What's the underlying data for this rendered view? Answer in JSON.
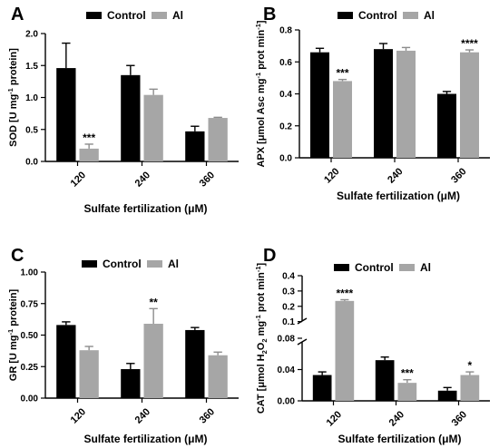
{
  "chart_data": [
    {
      "panel": "A",
      "type": "bar",
      "ylabel_parts": [
        "SOD [U mg",
        "-1",
        " protein]"
      ],
      "xlabel": "Sulfate fertilization (μM)",
      "categories": [
        "120",
        "240",
        "360"
      ],
      "series": [
        {
          "name": "Control",
          "color": "#000000",
          "values": [
            1.46,
            1.35,
            0.47
          ],
          "errors": [
            0.39,
            0.15,
            0.08
          ]
        },
        {
          "name": "Al",
          "color": "#a6a6a6",
          "values": [
            0.2,
            1.04,
            0.68
          ],
          "errors": [
            0.07,
            0.09,
            0.01
          ]
        }
      ],
      "significance": [
        {
          "category": "120",
          "series": "Al",
          "label": "***"
        }
      ],
      "ylim": [
        0,
        2.0
      ],
      "yticks": [
        "0.0",
        "0.5",
        "1.0",
        "1.5",
        "2.0"
      ],
      "legend": "top"
    },
    {
      "panel": "B",
      "type": "bar",
      "ylabel_parts": [
        "APX [μmol Asc mg",
        "-1",
        " prot min",
        "-1",
        "]"
      ],
      "xlabel": "Sulfate fertilization (μM)",
      "categories": [
        "120",
        "240",
        "360"
      ],
      "series": [
        {
          "name": "Control",
          "color": "#000000",
          "values": [
            0.66,
            0.68,
            0.4
          ],
          "errors": [
            0.025,
            0.035,
            0.015
          ]
        },
        {
          "name": "Al",
          "color": "#a6a6a6",
          "values": [
            0.48,
            0.67,
            0.66
          ],
          "errors": [
            0.01,
            0.02,
            0.015
          ]
        }
      ],
      "significance": [
        {
          "category": "120",
          "series": "Al",
          "label": "***"
        },
        {
          "category": "360",
          "series": "Al",
          "label": "****"
        }
      ],
      "ylim": [
        0,
        0.8
      ],
      "yticks": [
        "0.0",
        "0.2",
        "0.4",
        "0.6",
        "0.8"
      ],
      "legend": "top"
    },
    {
      "panel": "C",
      "type": "bar",
      "ylabel_parts": [
        "GR [U mg",
        "-1",
        " protein]"
      ],
      "xlabel": "Sulfate fertilization (μM)",
      "categories": [
        "120",
        "240",
        "360"
      ],
      "series": [
        {
          "name": "Control",
          "color": "#000000",
          "values": [
            0.58,
            0.23,
            0.54
          ],
          "errors": [
            0.025,
            0.045,
            0.02
          ]
        },
        {
          "name": "Al",
          "color": "#a6a6a6",
          "values": [
            0.38,
            0.59,
            0.34
          ],
          "errors": [
            0.03,
            0.12,
            0.025
          ]
        }
      ],
      "significance": [
        {
          "category": "240",
          "series": "Al",
          "label": "**"
        }
      ],
      "ylim": [
        0,
        1.0
      ],
      "yticks": [
        "0.00",
        "0.25",
        "0.50",
        "0.75",
        "1.00"
      ],
      "legend": "top"
    },
    {
      "panel": "D",
      "type": "bar",
      "ylabel_parts": [
        "CAT [μmol H",
        "2",
        "O",
        "2",
        " mg",
        "-1",
        " prot min",
        "-1",
        "]"
      ],
      "xlabel": "Sulfate fertilization (μM)",
      "categories": [
        "120",
        "240",
        "360"
      ],
      "series": [
        {
          "name": "Control",
          "color": "#000000",
          "values": [
            0.033,
            0.052,
            0.013
          ],
          "errors": [
            0.004,
            0.004,
            0.004
          ]
        },
        {
          "name": "Al",
          "color": "#a6a6a6",
          "values": [
            0.235,
            0.023,
            0.033
          ],
          "errors": [
            0.008,
            0.004,
            0.004
          ]
        }
      ],
      "significance": [
        {
          "category": "120",
          "series": "Al",
          "label": "****"
        },
        {
          "category": "240",
          "series": "Al",
          "label": "***"
        },
        {
          "category": "360",
          "series": "Al",
          "label": "*"
        }
      ],
      "y_break": true,
      "ylim_lower": [
        0,
        0.08
      ],
      "ylim_upper": [
        0.08,
        0.4
      ],
      "yticks_lower": [
        "0.00",
        "0.04",
        "0.08"
      ],
      "yticks_upper": [
        "0.1",
        "0.2",
        "0.3",
        "0.4"
      ],
      "legend": "top"
    }
  ]
}
